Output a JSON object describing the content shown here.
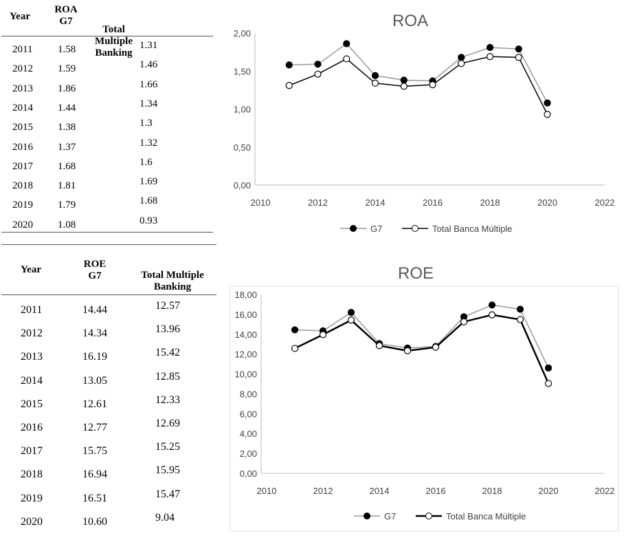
{
  "roa_table": {
    "headers": [
      "Year",
      "ROA G7",
      "Total Multiple Banking"
    ],
    "header_lines": {
      "year": "Year",
      "g7_1": "ROA",
      "g7_2": "G7",
      "total": "Total Multiple Banking"
    },
    "rows": [
      [
        "2011",
        "1.58",
        "1.31"
      ],
      [
        "2012",
        "1.59",
        "1.46"
      ],
      [
        "2013",
        "1.86",
        "1.66"
      ],
      [
        "2014",
        "1.44",
        "1.34"
      ],
      [
        "2015",
        "1.38",
        "1.3"
      ],
      [
        "2016",
        "1.37",
        "1.32"
      ],
      [
        "2017",
        "1.68",
        "1.6"
      ],
      [
        "2018",
        "1.81",
        "1.69"
      ],
      [
        "2019",
        "1.79",
        "1.68"
      ],
      [
        "2020",
        "1.08",
        "0.93"
      ]
    ]
  },
  "roe_table": {
    "headers": [
      "Year",
      "ROE G7",
      "Total Multiple Banking"
    ],
    "header_lines": {
      "year": "Year",
      "g7_1": "ROE",
      "g7_2": "G7",
      "total_1": "Total Multiple",
      "total_2": "Banking"
    },
    "rows": [
      [
        "2011",
        "14.44",
        "12.57"
      ],
      [
        "2012",
        "14.34",
        "13.96"
      ],
      [
        "2013",
        "16.19",
        "15.42"
      ],
      [
        "2014",
        "13.05",
        "12.85"
      ],
      [
        "2015",
        "12.61",
        "12.33"
      ],
      [
        "2016",
        "12.77",
        "12.69"
      ],
      [
        "2017",
        "15.75",
        "15.25"
      ],
      [
        "2018",
        "16.94",
        "15.95"
      ],
      [
        "2019",
        "16.51",
        "15.47"
      ],
      [
        "2020",
        "10.60",
        "9.04"
      ]
    ]
  },
  "chart_data": [
    {
      "type": "line",
      "title": "ROA",
      "x": [
        2011,
        2012,
        2013,
        2014,
        2015,
        2016,
        2017,
        2018,
        2019,
        2020
      ],
      "xlim": [
        2010,
        2022
      ],
      "xticks": [
        "2010",
        "2012",
        "2014",
        "2016",
        "2018",
        "2020",
        "2022"
      ],
      "ylim": [
        0,
        2
      ],
      "yticks": [
        "0,00",
        "0,50",
        "1,00",
        "1,50",
        "2,00"
      ],
      "legend": "bottom",
      "grid": false,
      "series": [
        {
          "name": "G7",
          "values": [
            1.58,
            1.59,
            1.86,
            1.44,
            1.38,
            1.37,
            1.68,
            1.81,
            1.79,
            1.08
          ],
          "color": "#999999",
          "marker": "filled"
        },
        {
          "name": "Total Banca Múltiple",
          "values": [
            1.31,
            1.46,
            1.66,
            1.34,
            1.3,
            1.32,
            1.6,
            1.69,
            1.68,
            0.93
          ],
          "color": "#000000",
          "marker": "open"
        }
      ]
    },
    {
      "type": "line",
      "title": "ROE",
      "x": [
        2011,
        2012,
        2013,
        2014,
        2015,
        2016,
        2017,
        2018,
        2019,
        2020
      ],
      "xlim": [
        2010,
        2022
      ],
      "xticks": [
        "2010",
        "2012",
        "2014",
        "2016",
        "2018",
        "2020",
        "2022"
      ],
      "ylim": [
        0,
        18
      ],
      "yticks": [
        "0,00",
        "2,00",
        "4,00",
        "6,00",
        "8,00",
        "10,00",
        "12,00",
        "14,00",
        "16,00",
        "18,00"
      ],
      "legend": "bottom",
      "grid": false,
      "series": [
        {
          "name": "G7",
          "values": [
            14.44,
            14.34,
            16.19,
            13.05,
            12.61,
            12.77,
            15.75,
            16.94,
            16.51,
            10.6
          ],
          "color": "#999999",
          "marker": "filled"
        },
        {
          "name": "Total Banca Múltiple",
          "values": [
            12.57,
            13.96,
            15.42,
            12.85,
            12.33,
            12.69,
            15.25,
            15.95,
            15.47,
            9.04
          ],
          "color": "#000000",
          "marker": "open"
        }
      ]
    }
  ]
}
